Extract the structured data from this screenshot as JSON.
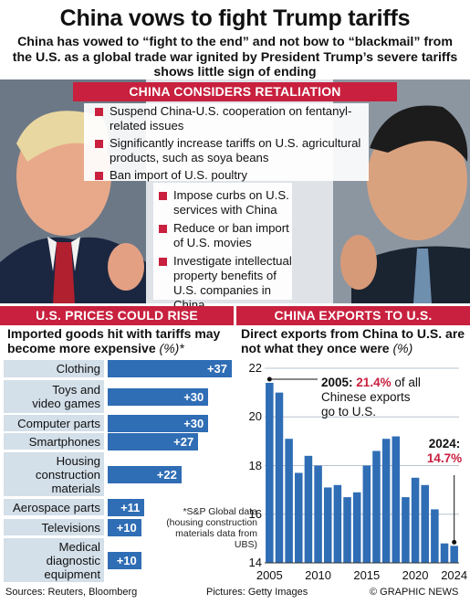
{
  "header": {
    "title": "China vows to fight Trump tariffs",
    "subtitle": "China has vowed to “fight to the end” and not bow to “blackmail” from the U.S. as a global trade war ignited by President Trump’s severe tariffs shows little sign of ending"
  },
  "retaliation": {
    "heading": "CHINA CONSIDERS RETALIATION",
    "items": [
      "Suspend China-U.S. cooperation on fentanyl-related issues",
      "Significantly increase tariffs on U.S. agricultural products, such as soya beans",
      "Ban import of U.S. poultry",
      "Impose curbs on U.S. services with China",
      "Reduce or ban import of U.S. movies",
      "Investigate intellectual property benefits of U.S. companies in China"
    ]
  },
  "left_panel": {
    "banner": "U.S. PRICES COULD RISE",
    "title": "Imported goods hit with tariffs may become more expensive",
    "unit": "(%)*",
    "note": "*S&P Global data (housing construction materials data from UBS)"
  },
  "right_panel": {
    "banner": "CHINA EXPORTS TO U.S.",
    "title": "Direct exports from China to U.S. are not what they once were",
    "unit": "(%)",
    "annot_2005_year": "2005:",
    "annot_2005_value": "21.4%",
    "annot_2005_rest1": "of all",
    "annot_2005_rest2": "Chinese exports",
    "annot_2005_rest3": "go to U.S.",
    "annot_2024_year": "2024:",
    "annot_2024_value": "14.7%"
  },
  "footer": {
    "sources": "Sources: Reuters, Bloomberg",
    "pictures": "Pictures: Getty Images",
    "credit": "© GRAPHIC NEWS"
  },
  "colors": {
    "accent_red": "#c8203e",
    "bar_blue": "#2f6db5",
    "label_bg": "#d3dfe9"
  },
  "chart_data": [
    {
      "type": "bar",
      "orientation": "horizontal",
      "title": "Imported goods hit with tariffs may become more expensive",
      "unit": "%",
      "categories": [
        "Clothing",
        "Toys and video games",
        "Computer parts",
        "Smartphones",
        "Housing construction materials",
        "Aerospace parts",
        "Televisions",
        "Medical diagnostic equipment"
      ],
      "category_lines": [
        [
          "Clothing"
        ],
        [
          "Toys and",
          "video games"
        ],
        [
          "Computer parts"
        ],
        [
          "Smartphones"
        ],
        [
          "Housing",
          "construction",
          "materials"
        ],
        [
          "Aerospace parts"
        ],
        [
          "Televisions"
        ],
        [
          "Medical",
          "diagnostic",
          "equipment"
        ]
      ],
      "values": [
        37,
        30,
        30,
        27,
        22,
        11,
        10,
        10
      ],
      "value_labels": [
        "+37",
        "+30",
        "+30",
        "+27",
        "+22",
        "+11",
        "+10",
        "+10"
      ]
    },
    {
      "type": "bar",
      "title": "Direct exports from China to U.S. are not what they once were",
      "unit": "%",
      "x": [
        2005,
        2006,
        2007,
        2008,
        2009,
        2010,
        2011,
        2012,
        2013,
        2014,
        2015,
        2016,
        2017,
        2018,
        2019,
        2020,
        2021,
        2022,
        2023,
        2024
      ],
      "values": [
        21.4,
        21.0,
        19.1,
        17.7,
        18.4,
        18.0,
        17.1,
        17.2,
        16.7,
        16.9,
        18.0,
        18.6,
        19.1,
        19.2,
        16.7,
        17.5,
        17.2,
        16.2,
        14.8,
        14.7
      ],
      "ylim": [
        14,
        22
      ],
      "yticks": [
        "14",
        "16",
        "18",
        "20",
        "22"
      ],
      "xticks": [
        "2005",
        "2010",
        "2015",
        "2020",
        "2024"
      ],
      "grid": true
    }
  ]
}
